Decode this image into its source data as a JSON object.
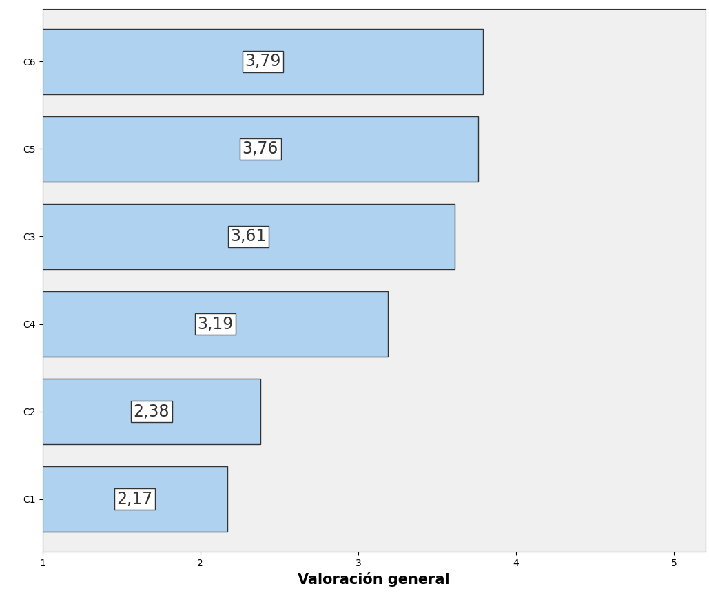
{
  "chart_data": {
    "type": "bar",
    "orientation": "horizontal",
    "categories": [
      "C1",
      "C2",
      "C4",
      "C3",
      "C5",
      "C6"
    ],
    "values": [
      2.17,
      2.38,
      3.19,
      3.61,
      3.76,
      3.79
    ],
    "value_labels": [
      "2,17",
      "2,38",
      "3,19",
      "3,61",
      "3,76",
      "3,79"
    ],
    "data_labels": true,
    "color": "#afd2f0",
    "x_label": "Valoración general",
    "xlim": [
      1,
      5.2
    ],
    "xticks": [
      1,
      2,
      3,
      4,
      5
    ],
    "grid": false
  }
}
